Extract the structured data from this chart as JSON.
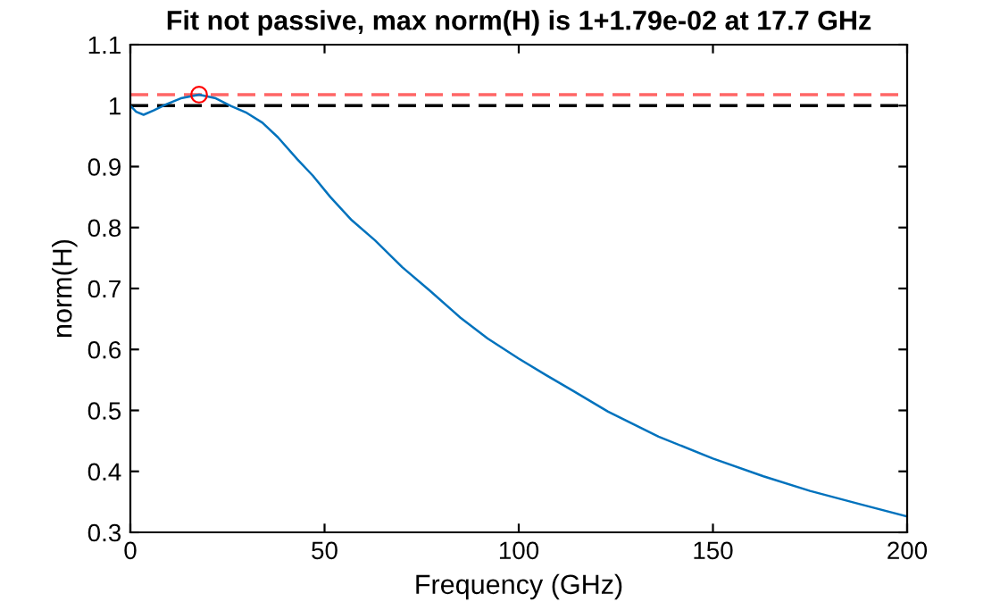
{
  "chart_data": {
    "type": "line",
    "title": "Fit not passive, max norm(H) is 1+1.79e-02 at 17.7 GHz",
    "xlabel": "Frequency (GHz)",
    "ylabel": "norm(H)",
    "series": [
      {
        "color": "#0072bd",
        "x": [
          0,
          1.5,
          3.4,
          6,
          9.2,
          13,
          17.7,
          22,
          26,
          30,
          34,
          38,
          43,
          47,
          51.5,
          57,
          63,
          70,
          77,
          85,
          92,
          100,
          107,
          114,
          123,
          136,
          150,
          163,
          175,
          188,
          200
        ],
        "values": [
          1.0,
          0.99,
          0.985,
          0.992,
          1.002,
          1.012,
          1.018,
          1.012,
          0.999,
          0.988,
          0.972,
          0.948,
          0.912,
          0.885,
          0.85,
          0.812,
          0.779,
          0.735,
          0.697,
          0.652,
          0.618,
          0.585,
          0.558,
          0.532,
          0.498,
          0.457,
          0.421,
          0.392,
          0.368,
          0.346,
          0.326
        ]
      },
      {
        "type": "scatter",
        "color": "#ff0000",
        "marker": "circle",
        "x": [
          17.7
        ],
        "values": [
          1.018
        ]
      }
    ],
    "ref_lines": [
      {
        "axis": "y",
        "value": 1,
        "color": "#000000",
        "line_style": "dashed"
      },
      {
        "axis": "y",
        "value": 1.018,
        "color": "#ff6666",
        "line_style": "dashed"
      }
    ],
    "xlim": [
      0,
      200
    ],
    "ylim": [
      0.3,
      1.1
    ],
    "xticks": [
      0,
      50,
      100,
      150,
      200
    ],
    "yticks": [
      0.3,
      0.4,
      0.5,
      0.6,
      0.7,
      0.8,
      0.9,
      1,
      1.1
    ],
    "grid": false,
    "legend": false
  }
}
